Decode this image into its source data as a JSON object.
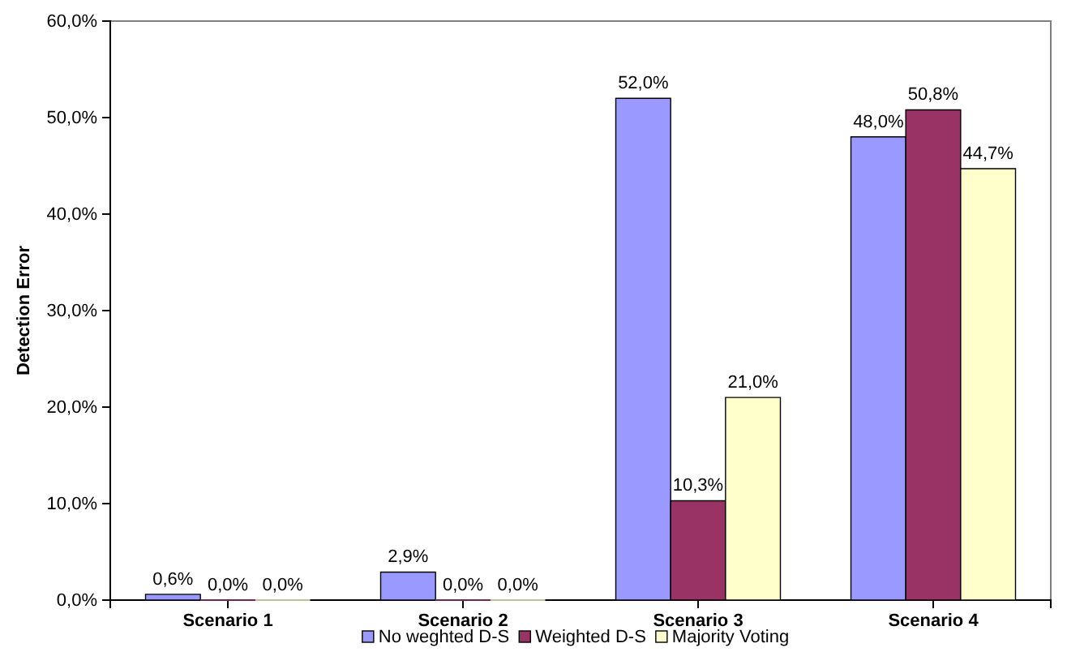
{
  "chart_data": {
    "type": "bar",
    "ylabel": "Detection Error",
    "categories": [
      "Scenario 1",
      "Scenario 2",
      "Scenario 3",
      "Scenario 4"
    ],
    "series": [
      {
        "name": "No weghted D-S",
        "color": "#9999ff",
        "values": [
          0.6,
          2.9,
          52.0,
          48.0
        ],
        "value_labels": [
          "0,6%",
          "2,9%",
          "52,0%",
          "48,0%"
        ]
      },
      {
        "name": "Weighted D-S",
        "color": "#993366",
        "values": [
          0.0,
          0.0,
          10.3,
          50.8
        ],
        "value_labels": [
          "0,0%",
          "0,0%",
          "10,3%",
          "50,8%"
        ]
      },
      {
        "name": "Majority Voting",
        "color": "#ffffcc",
        "values": [
          0.0,
          0.0,
          21.0,
          44.7
        ],
        "value_labels": [
          "0,0%",
          "0,0%",
          "21,0%",
          "44,7%"
        ]
      }
    ],
    "ylim": [
      0,
      60
    ],
    "yticks": [
      {
        "value": 0,
        "label": "0,0%"
      },
      {
        "value": 10,
        "label": "10,0%"
      },
      {
        "value": 20,
        "label": "20,0%"
      },
      {
        "value": 30,
        "label": "30,0%"
      },
      {
        "value": 40,
        "label": "40,0%"
      },
      {
        "value": 50,
        "label": "50,0%"
      },
      {
        "value": 60,
        "label": "60,0%"
      }
    ],
    "grid": false,
    "legend": "bottom"
  }
}
